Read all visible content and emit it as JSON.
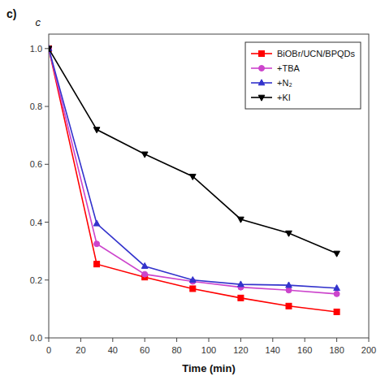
{
  "chart_data": {
    "type": "line",
    "title": "c)",
    "x_label": "Time (min)",
    "y_label": "c",
    "x": [
      0,
      30,
      60,
      90,
      120,
      150,
      180
    ],
    "series": [
      {
        "name": "BiOBr/UCN/BPQDs",
        "color": "#ff0000",
        "marker": "square",
        "values": [
          1.0,
          0.255,
          0.21,
          0.17,
          0.138,
          0.11,
          0.09
        ]
      },
      {
        "name": "+TBA",
        "color": "#cc44cc",
        "marker": "circle",
        "values": [
          1.0,
          0.325,
          0.22,
          0.195,
          0.175,
          0.165,
          0.152
        ]
      },
      {
        "name": "+N₂",
        "color": "#3333cc",
        "marker": "triangle-up",
        "values": [
          1.0,
          0.395,
          0.248,
          0.2,
          0.185,
          0.182,
          0.172
        ]
      },
      {
        "name": "+KI",
        "color": "#000000",
        "marker": "triangle-down",
        "values": [
          1.0,
          0.72,
          0.635,
          0.558,
          0.41,
          0.362,
          0.292
        ]
      }
    ],
    "xlim": [
      0,
      200
    ],
    "ylim": [
      0.0,
      1.05
    ],
    "xticks": [
      0,
      20,
      40,
      60,
      80,
      100,
      120,
      140,
      160,
      180,
      200
    ],
    "yticks": [
      {
        "value": 0.0,
        "label": "0.0"
      },
      0.2,
      0.4,
      0.6,
      0.8,
      {
        "value": 1.0,
        "label": "1.0"
      }
    ],
    "legend": "upper right",
    "grid": false
  }
}
